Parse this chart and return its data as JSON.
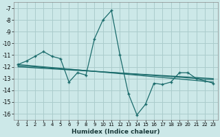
{
  "xlabel": "Humidex (Indice chaleur)",
  "bg_color": "#cce8e8",
  "grid_color": "#aacccc",
  "line_color": "#1a6b6b",
  "xlim": [
    -0.5,
    23.5
  ],
  "ylim": [
    -16.5,
    -6.5
  ],
  "yticks": [
    -16,
    -15,
    -14,
    -13,
    -12,
    -11,
    -10,
    -9,
    -8,
    -7
  ],
  "xticks": [
    0,
    1,
    2,
    3,
    4,
    5,
    6,
    7,
    8,
    9,
    10,
    11,
    12,
    13,
    14,
    15,
    16,
    17,
    18,
    19,
    20,
    21,
    22,
    23
  ],
  "series_spiky": {
    "x": [
      0,
      1,
      2,
      3,
      4,
      5,
      6,
      7,
      8,
      9,
      10,
      11,
      12,
      13,
      14,
      15,
      16,
      17,
      18,
      19,
      20,
      21,
      22,
      23
    ],
    "y": [
      -11.8,
      -11.5,
      -11.1,
      -10.7,
      -11.1,
      -11.3,
      -13.3,
      -12.5,
      -12.7,
      -9.6,
      -8.0,
      -7.2,
      -11.0,
      -14.3,
      -16.1,
      -15.2,
      -13.4,
      -13.5,
      -13.3,
      -12.5,
      -12.5,
      -13.0,
      -13.2,
      -13.4
    ]
  },
  "series_flat1": {
    "x": [
      0,
      23
    ],
    "y": [
      -11.8,
      -13.3
    ]
  },
  "series_flat2": {
    "x": [
      0,
      23
    ],
    "y": [
      -11.9,
      -13.1
    ]
  },
  "series_flat3": {
    "x": [
      0,
      23
    ],
    "y": [
      -12.0,
      -13.0
    ]
  }
}
